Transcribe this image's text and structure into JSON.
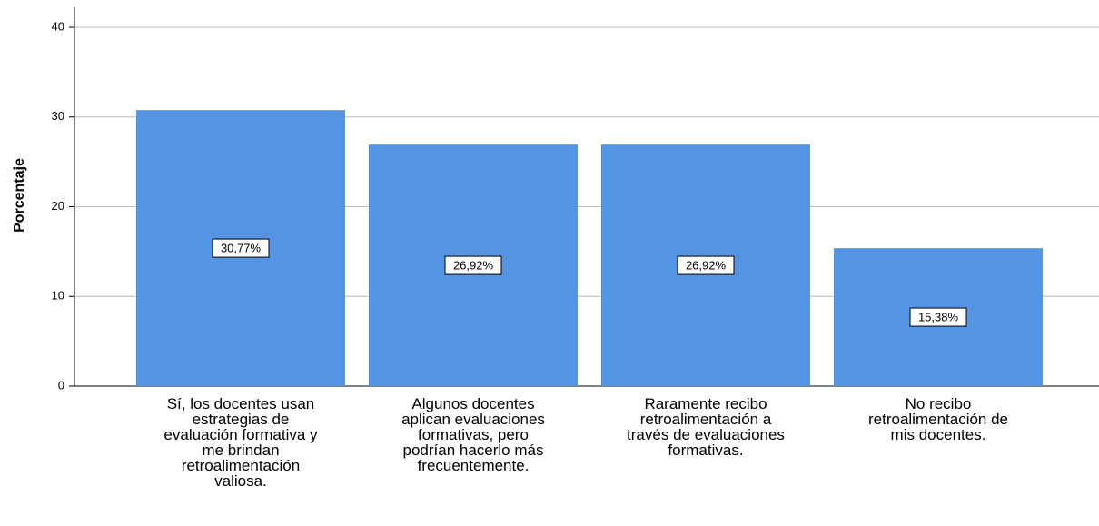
{
  "chart_data": {
    "type": "bar",
    "y_label": "Porcentaje",
    "categories": [
      "Sí, los docentes usan\nestrategias de\nevaluación formativa y\nme brindan\nretroalimentación\nvaliosa.",
      "Algunos docentes\naplican evaluaciones\nformativas, pero\npodrían hacerlo más\nfrecuentemente.",
      "Raramente recibo\nretroalimentación a\ntravés de evaluaciones\nformativas.",
      "No recibo\nretroalimentación de\nmis docentes."
    ],
    "values": [
      30.77,
      26.92,
      26.92,
      15.38
    ],
    "value_labels": [
      "30,77%",
      "26,92%",
      "26,92%",
      "15,38%"
    ],
    "color": "#5594e3",
    "ylim": [
      0,
      40
    ],
    "yticks": [
      0,
      10,
      20,
      30,
      40
    ],
    "grid": true
  }
}
